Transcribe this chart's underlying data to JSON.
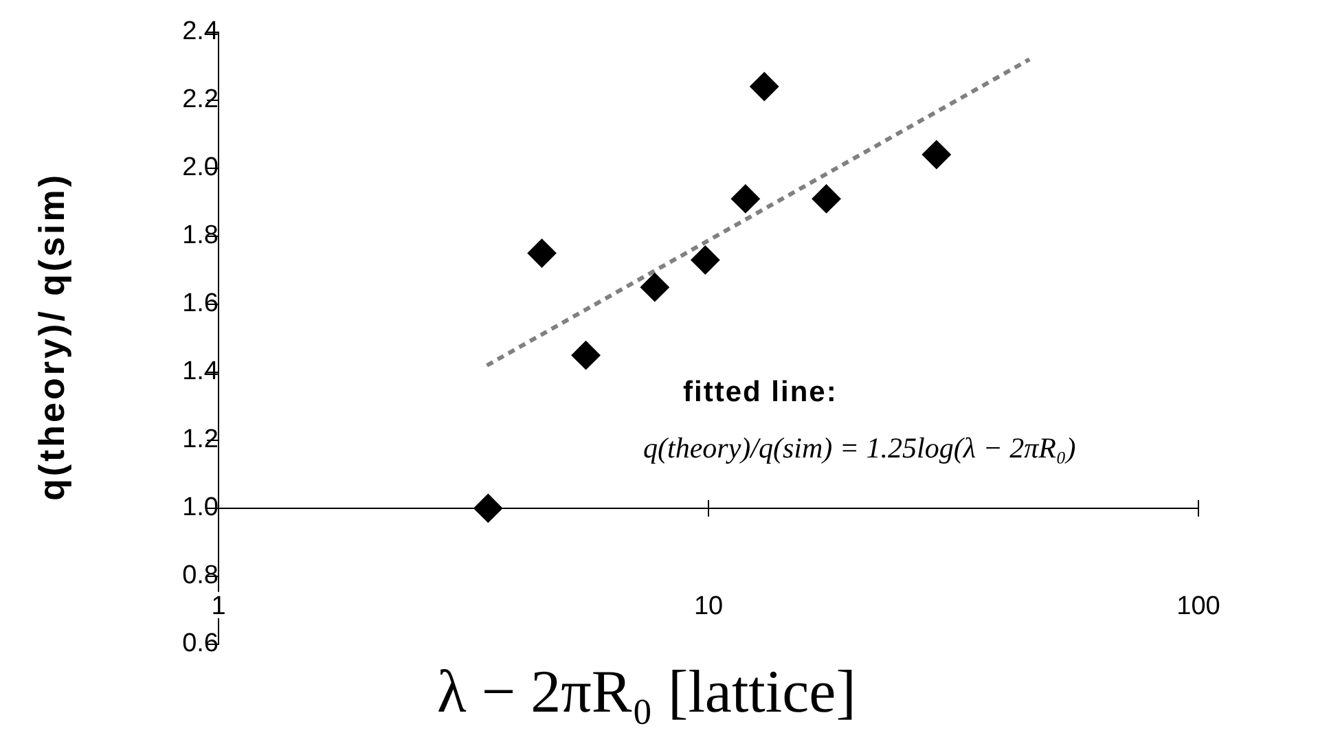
{
  "chart_data": {
    "type": "scatter",
    "xlabel": "λ − 2πR₀  [lattice]",
    "ylabel": "q(theory)/ q(sim)",
    "annotations": [
      "fitted  line:",
      "q(theory)/q(sim) = 1.25log(λ − 2πR₀)"
    ],
    "log": "x",
    "xlim": [
      1,
      100
    ],
    "xticks": [
      1,
      10,
      100
    ],
    "ylim": [
      0.6,
      2.4
    ],
    "yticks": [
      0.6,
      0.8,
      {
        "value": 1,
        "label": "1.0"
      },
      1.2,
      1.4,
      1.6,
      1.8,
      {
        "value": 2,
        "label": "2.0"
      },
      2.2,
      2.4
    ],
    "legend": false,
    "series": [
      {
        "color": "#000000",
        "marker": "diamond",
        "x": [
          3.55,
          4.57,
          5.62,
          7.77,
          9.85,
          11.9,
          13.0,
          17.4,
          29.2
        ],
        "values": [
          1.0,
          1.75,
          1.45,
          1.65,
          1.73,
          1.91,
          2.24,
          1.91,
          2.04
        ]
      },
      {
        "type": "line",
        "color": "#808080",
        "marker": "none",
        "line_style": "dashed",
        "x": [
          3.53,
          45.2
        ],
        "values": [
          1.42,
          2.32
        ]
      }
    ]
  }
}
